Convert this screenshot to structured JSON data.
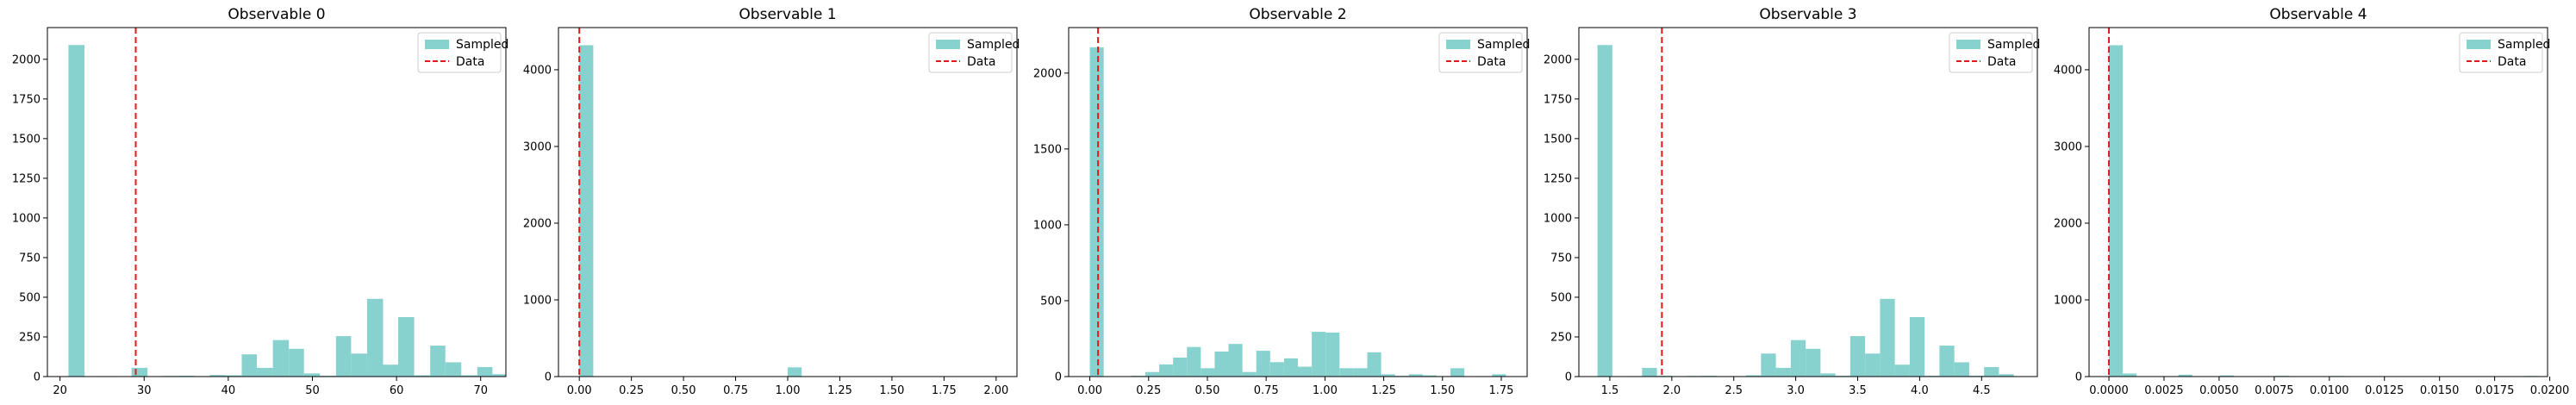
{
  "figure": {
    "background": "#ffffff"
  },
  "style": {
    "bar_color": "#87d2cf",
    "data_line_color": "#e31a1c"
  },
  "legend": {
    "sampled_label": "Sampled",
    "data_label": "Data"
  },
  "chart_data": [
    {
      "type": "histogram",
      "title": "Observable 0",
      "xlim": [
        18.5,
        73
      ],
      "ylim": [
        0,
        2200
      ],
      "xticks": [
        20,
        30,
        40,
        50,
        60,
        70
      ],
      "xtick_labels": [
        "20",
        "30",
        "40",
        "50",
        "60",
        "70"
      ],
      "yticks": [
        0,
        250,
        500,
        750,
        1000,
        1250,
        1500,
        1750,
        2000
      ],
      "ytick_labels": [
        "0",
        "250",
        "500",
        "750",
        "1000",
        "1250",
        "1500",
        "1750",
        "2000"
      ],
      "data_value": 29,
      "bins": [
        {
          "x0": 21.0,
          "x1": 22.9,
          "count": 2090
        },
        {
          "x0": 22.9,
          "x1": 24.8,
          "count": 0
        },
        {
          "x0": 24.8,
          "x1": 26.6,
          "count": 3
        },
        {
          "x0": 26.6,
          "x1": 28.5,
          "count": 2
        },
        {
          "x0": 28.5,
          "x1": 30.4,
          "count": 55
        },
        {
          "x0": 30.4,
          "x1": 32.2,
          "count": 0
        },
        {
          "x0": 32.2,
          "x1": 34.1,
          "count": 4
        },
        {
          "x0": 34.1,
          "x1": 36.0,
          "count": 5
        },
        {
          "x0": 36.0,
          "x1": 37.8,
          "count": 3
        },
        {
          "x0": 37.8,
          "x1": 39.7,
          "count": 10
        },
        {
          "x0": 39.7,
          "x1": 41.6,
          "count": 8
        },
        {
          "x0": 41.6,
          "x1": 43.4,
          "count": 140
        },
        {
          "x0": 43.4,
          "x1": 45.3,
          "count": 55
        },
        {
          "x0": 45.3,
          "x1": 47.2,
          "count": 230
        },
        {
          "x0": 47.2,
          "x1": 49.0,
          "count": 175
        },
        {
          "x0": 49.0,
          "x1": 50.9,
          "count": 20
        },
        {
          "x0": 50.9,
          "x1": 52.8,
          "count": 5
        },
        {
          "x0": 52.8,
          "x1": 54.6,
          "count": 255
        },
        {
          "x0": 54.6,
          "x1": 56.5,
          "count": 145
        },
        {
          "x0": 56.5,
          "x1": 58.4,
          "count": 490
        },
        {
          "x0": 58.4,
          "x1": 60.2,
          "count": 75
        },
        {
          "x0": 60.2,
          "x1": 62.1,
          "count": 375
        },
        {
          "x0": 62.1,
          "x1": 64.0,
          "count": 8
        },
        {
          "x0": 64.0,
          "x1": 65.8,
          "count": 195
        },
        {
          "x0": 65.8,
          "x1": 67.7,
          "count": 90
        },
        {
          "x0": 67.7,
          "x1": 69.6,
          "count": 8
        },
        {
          "x0": 69.6,
          "x1": 71.4,
          "count": 60
        },
        {
          "x0": 71.4,
          "x1": 73.3,
          "count": 15
        }
      ]
    },
    {
      "type": "histogram",
      "title": "Observable 1",
      "xlim": [
        -0.1,
        2.1
      ],
      "ylim": [
        0,
        4550
      ],
      "xticks": [
        0,
        0.25,
        0.5,
        0.75,
        1.0,
        1.25,
        1.5,
        1.75,
        2.0
      ],
      "xtick_labels": [
        "0.00",
        "0.25",
        "0.50",
        "0.75",
        "1.00",
        "1.25",
        "1.50",
        "1.75",
        "2.00"
      ],
      "yticks": [
        0,
        1000,
        2000,
        3000,
        4000
      ],
      "ytick_labels": [
        "0",
        "1000",
        "2000",
        "3000",
        "4000"
      ],
      "data_value": 0.0,
      "bins": [
        {
          "x0": 0.0,
          "x1": 0.067,
          "count": 4320
        },
        {
          "x0": 1.0,
          "x1": 1.067,
          "count": 120
        },
        {
          "x0": 2.0,
          "x1": 2.067,
          "count": 2
        }
      ]
    },
    {
      "type": "histogram",
      "title": "Observable 2",
      "xlim": [
        -0.09,
        1.86
      ],
      "ylim": [
        0,
        2300
      ],
      "xticks": [
        0,
        0.25,
        0.5,
        0.75,
        1.0,
        1.25,
        1.5,
        1.75
      ],
      "xtick_labels": [
        "0.00",
        "0.25",
        "0.50",
        "0.75",
        "1.00",
        "1.25",
        "1.50",
        "1.75"
      ],
      "yticks": [
        0,
        500,
        1000,
        1500,
        2000
      ],
      "ytick_labels": [
        "0",
        "500",
        "1000",
        "1500",
        "2000"
      ],
      "data_value": 0.035,
      "bins": [
        {
          "x0": 0.0,
          "x1": 0.059,
          "count": 2170
        },
        {
          "x0": 0.059,
          "x1": 0.118,
          "count": 0
        },
        {
          "x0": 0.118,
          "x1": 0.177,
          "count": 2
        },
        {
          "x0": 0.177,
          "x1": 0.236,
          "count": 5
        },
        {
          "x0": 0.236,
          "x1": 0.295,
          "count": 30
        },
        {
          "x0": 0.295,
          "x1": 0.354,
          "count": 80
        },
        {
          "x0": 0.354,
          "x1": 0.413,
          "count": 125
        },
        {
          "x0": 0.413,
          "x1": 0.472,
          "count": 195
        },
        {
          "x0": 0.472,
          "x1": 0.531,
          "count": 55
        },
        {
          "x0": 0.531,
          "x1": 0.59,
          "count": 165
        },
        {
          "x0": 0.59,
          "x1": 0.649,
          "count": 215
        },
        {
          "x0": 0.649,
          "x1": 0.708,
          "count": 30
        },
        {
          "x0": 0.708,
          "x1": 0.767,
          "count": 170
        },
        {
          "x0": 0.767,
          "x1": 0.826,
          "count": 95
        },
        {
          "x0": 0.826,
          "x1": 0.885,
          "count": 120
        },
        {
          "x0": 0.885,
          "x1": 0.944,
          "count": 65
        },
        {
          "x0": 0.944,
          "x1": 1.003,
          "count": 295
        },
        {
          "x0": 1.003,
          "x1": 1.062,
          "count": 290
        },
        {
          "x0": 1.062,
          "x1": 1.121,
          "count": 55
        },
        {
          "x0": 1.121,
          "x1": 1.18,
          "count": 55
        },
        {
          "x0": 1.18,
          "x1": 1.239,
          "count": 160
        },
        {
          "x0": 1.239,
          "x1": 1.298,
          "count": 15
        },
        {
          "x0": 1.298,
          "x1": 1.357,
          "count": 5
        },
        {
          "x0": 1.357,
          "x1": 1.416,
          "count": 15
        },
        {
          "x0": 1.416,
          "x1": 1.475,
          "count": 8
        },
        {
          "x0": 1.475,
          "x1": 1.534,
          "count": 3
        },
        {
          "x0": 1.534,
          "x1": 1.593,
          "count": 55
        },
        {
          "x0": 1.593,
          "x1": 1.652,
          "count": 0
        },
        {
          "x0": 1.652,
          "x1": 1.711,
          "count": 3
        },
        {
          "x0": 1.711,
          "x1": 1.77,
          "count": 15
        }
      ]
    },
    {
      "type": "histogram",
      "title": "Observable 3",
      "xlim": [
        1.25,
        4.95
      ],
      "ylim": [
        0,
        2200
      ],
      "xticks": [
        1.5,
        2.0,
        2.5,
        3.0,
        3.5,
        4.0,
        4.5
      ],
      "xtick_labels": [
        "1.5",
        "2.0",
        "2.5",
        "3.0",
        "3.5",
        "4.0",
        "4.5"
      ],
      "yticks": [
        0,
        250,
        500,
        750,
        1000,
        1250,
        1500,
        1750,
        2000
      ],
      "ytick_labels": [
        "0",
        "250",
        "500",
        "750",
        "1000",
        "1250",
        "1500",
        "1750",
        "2000"
      ],
      "data_value": 1.92,
      "bins": [
        {
          "x0": 1.4,
          "x1": 1.52,
          "count": 2090
        },
        {
          "x0": 1.52,
          "x1": 1.64,
          "count": 0
        },
        {
          "x0": 1.64,
          "x1": 1.76,
          "count": 3
        },
        {
          "x0": 1.76,
          "x1": 1.88,
          "count": 55
        },
        {
          "x0": 1.88,
          "x1": 2.0,
          "count": 5
        },
        {
          "x0": 2.0,
          "x1": 2.12,
          "count": 0
        },
        {
          "x0": 2.12,
          "x1": 2.24,
          "count": 4
        },
        {
          "x0": 2.24,
          "x1": 2.36,
          "count": 5
        },
        {
          "x0": 2.36,
          "x1": 2.48,
          "count": 3
        },
        {
          "x0": 2.48,
          "x1": 2.6,
          "count": 3
        },
        {
          "x0": 2.6,
          "x1": 2.72,
          "count": 8
        },
        {
          "x0": 2.72,
          "x1": 2.84,
          "count": 145
        },
        {
          "x0": 2.84,
          "x1": 2.96,
          "count": 55
        },
        {
          "x0": 2.96,
          "x1": 3.08,
          "count": 230
        },
        {
          "x0": 3.08,
          "x1": 3.2,
          "count": 175
        },
        {
          "x0": 3.2,
          "x1": 3.32,
          "count": 20
        },
        {
          "x0": 3.32,
          "x1": 3.44,
          "count": 5
        },
        {
          "x0": 3.44,
          "x1": 3.56,
          "count": 255
        },
        {
          "x0": 3.56,
          "x1": 3.68,
          "count": 145
        },
        {
          "x0": 3.68,
          "x1": 3.8,
          "count": 490
        },
        {
          "x0": 3.8,
          "x1": 3.92,
          "count": 75
        },
        {
          "x0": 3.92,
          "x1": 4.04,
          "count": 375
        },
        {
          "x0": 4.04,
          "x1": 4.16,
          "count": 5
        },
        {
          "x0": 4.16,
          "x1": 4.28,
          "count": 195
        },
        {
          "x0": 4.28,
          "x1": 4.4,
          "count": 90
        },
        {
          "x0": 4.4,
          "x1": 4.52,
          "count": 5
        },
        {
          "x0": 4.52,
          "x1": 4.64,
          "count": 60
        },
        {
          "x0": 4.64,
          "x1": 4.76,
          "count": 15
        }
      ]
    },
    {
      "type": "histogram",
      "title": "Observable 4",
      "xlim": [
        -0.0009,
        0.0199
      ],
      "ylim": [
        0,
        4550
      ],
      "xticks": [
        0,
        0.0025,
        0.005,
        0.0075,
        0.01,
        0.0125,
        0.015,
        0.0175,
        0.02
      ],
      "xtick_labels": [
        "0.0000",
        "0.0025",
        "0.0050",
        "0.0075",
        "0.0100",
        "0.0125",
        "0.0150",
        "0.0175",
        "0.0200"
      ],
      "yticks": [
        0,
        1000,
        2000,
        3000,
        4000
      ],
      "ytick_labels": [
        "0",
        "1000",
        "2000",
        "3000",
        "4000"
      ],
      "data_value": 0.0,
      "bins": [
        {
          "x0": 0.0,
          "x1": 0.00063,
          "count": 4320
        },
        {
          "x0": 0.00063,
          "x1": 0.00126,
          "count": 40
        },
        {
          "x0": 0.00126,
          "x1": 0.00189,
          "count": 5
        },
        {
          "x0": 0.00189,
          "x1": 0.00252,
          "count": 3
        },
        {
          "x0": 0.00252,
          "x1": 0.00315,
          "count": 2
        },
        {
          "x0": 0.00315,
          "x1": 0.00378,
          "count": 25
        },
        {
          "x0": 0.00378,
          "x1": 0.00441,
          "count": 3
        },
        {
          "x0": 0.00441,
          "x1": 0.00504,
          "count": 2
        },
        {
          "x0": 0.00504,
          "x1": 0.00567,
          "count": 15
        },
        {
          "x0": 0.0063,
          "x1": 0.00693,
          "count": 3
        },
        {
          "x0": 0.00756,
          "x1": 0.00819,
          "count": 10
        },
        {
          "x0": 0.00882,
          "x1": 0.00945,
          "count": 3
        },
        {
          "x0": 0.01008,
          "x1": 0.01071,
          "count": 8
        },
        {
          "x0": 0.01197,
          "x1": 0.0126,
          "count": 5
        },
        {
          "x0": 0.01386,
          "x1": 0.01449,
          "count": 5
        },
        {
          "x0": 0.0157,
          "x1": 0.01633,
          "count": 3
        },
        {
          "x0": 0.0176,
          "x1": 0.01823,
          "count": 3
        },
        {
          "x0": 0.01886,
          "x1": 0.01949,
          "count": 8
        }
      ]
    }
  ]
}
